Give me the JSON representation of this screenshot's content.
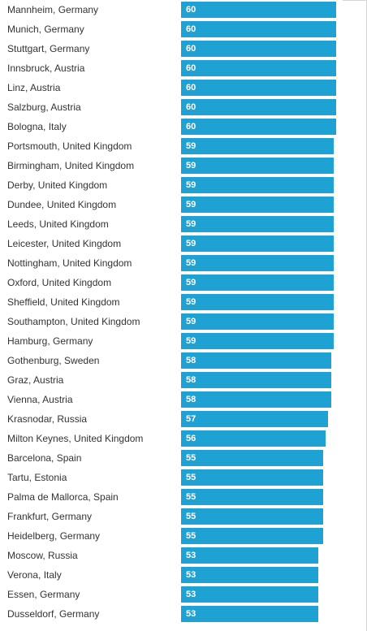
{
  "chart_data": {
    "type": "bar",
    "orientation": "horizontal",
    "title": "",
    "xlabel": "",
    "ylabel": "",
    "grid": false,
    "xlim": [
      0,
      60
    ],
    "bar_color": "#1ea2d4",
    "value_label_color": "#ffffff",
    "categories": [
      "Mannheim, Germany",
      "Munich, Germany",
      "Stuttgart, Germany",
      "Innsbruck, Austria",
      "Linz, Austria",
      "Salzburg, Austria",
      "Bologna, Italy",
      "Portsmouth, United Kingdom",
      "Birmingham, United Kingdom",
      "Derby, United Kingdom",
      "Dundee, United Kingdom",
      "Leeds, United Kingdom",
      "Leicester, United Kingdom",
      "Nottingham, United Kingdom",
      "Oxford, United Kingdom",
      "Sheffield, United Kingdom",
      "Southampton, United Kingdom",
      "Hamburg, Germany",
      "Gothenburg, Sweden",
      "Graz, Austria",
      "Vienna, Austria",
      "Krasnodar, Russia",
      "Milton Keynes, United Kingdom",
      "Barcelona, Spain",
      "Tartu, Estonia",
      "Palma de Mallorca, Spain",
      "Frankfurt, Germany",
      "Heidelberg, Germany",
      "Moscow, Russia",
      "Verona, Italy",
      "Essen, Germany",
      "Dusseldorf, Germany"
    ],
    "values": [
      60,
      60,
      60,
      60,
      60,
      60,
      60,
      59,
      59,
      59,
      59,
      59,
      59,
      59,
      59,
      59,
      59,
      59,
      58,
      58,
      58,
      57,
      56,
      55,
      55,
      55,
      55,
      55,
      53,
      53,
      53,
      53
    ]
  }
}
